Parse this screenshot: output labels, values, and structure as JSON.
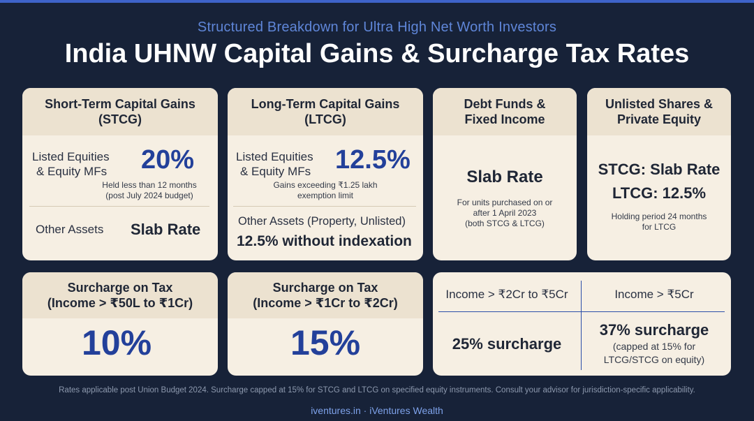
{
  "header": {
    "subtitle": "Structured Breakdown for Ultra High Net Worth Investors",
    "title": "India UHNW Capital Gains & Surcharge Tax Rates"
  },
  "stcg": {
    "heading_line1": "Short-Term Capital Gains",
    "heading_line2": "(STCG)",
    "listed_label_line1": "Listed Equities",
    "listed_label_line2": "& Equity MFs",
    "listed_rate": "20%",
    "listed_note_line1": "Held less than 12 months",
    "listed_note_line2": "(post July 2024 budget)",
    "other_label": "Other Assets",
    "other_rate": "Slab Rate"
  },
  "ltcg": {
    "heading_line1": "Long-Term Capital Gains",
    "heading_line2": "(LTCG)",
    "listed_label_line1": "Listed Equities",
    "listed_label_line2": "& Equity MFs",
    "listed_rate": "12.5%",
    "listed_note_line1": "Gains exceeding ₹1.25 lakh",
    "listed_note_line2": "exemption limit",
    "other_label": "Other Assets (Property, Unlisted)",
    "other_rate": "12.5% without indexation"
  },
  "debt": {
    "heading_line1": "Debt Funds &",
    "heading_line2": "Fixed Income",
    "rate": "Slab Rate",
    "note_line1": "For units purchased on or",
    "note_line2": "after 1 April 2023",
    "note_line3": "(both STCG & LTCG)"
  },
  "unlisted": {
    "heading_line1": "Unlisted Shares &",
    "heading_line2": "Private Equity",
    "stcg_rate": "STCG: Slab Rate",
    "ltcg_rate": "LTCG: 12.5%",
    "note_line1": "Holding period 24 months",
    "note_line2": "for LTCG"
  },
  "surcharge_1": {
    "heading_line1": "Surcharge on Tax",
    "heading_line2": "(Income > ₹50L to ₹1Cr)",
    "rate": "10%"
  },
  "surcharge_2": {
    "heading_line1": "Surcharge on Tax",
    "heading_line2": "(Income > ₹1Cr to ₹2Cr)",
    "rate": "15%"
  },
  "surcharge_3": {
    "col1_label": "Income > ₹2Cr to ₹5Cr",
    "col1_rate": "25% surcharge",
    "col2_label": "Income > ₹5Cr",
    "col2_rate": "37% surcharge",
    "col2_note_line1": "(capped at 15% for",
    "col2_note_line2": "LTCG/STCG on equity)"
  },
  "footer": {
    "note": "Rates applicable post Union Budget 2024. Surcharge capped at 15% for STCG and LTCG on specified equity instruments. Consult your advisor for jurisdiction-specific applicability.",
    "brand": "iventures.in · iVentures Wealth"
  }
}
